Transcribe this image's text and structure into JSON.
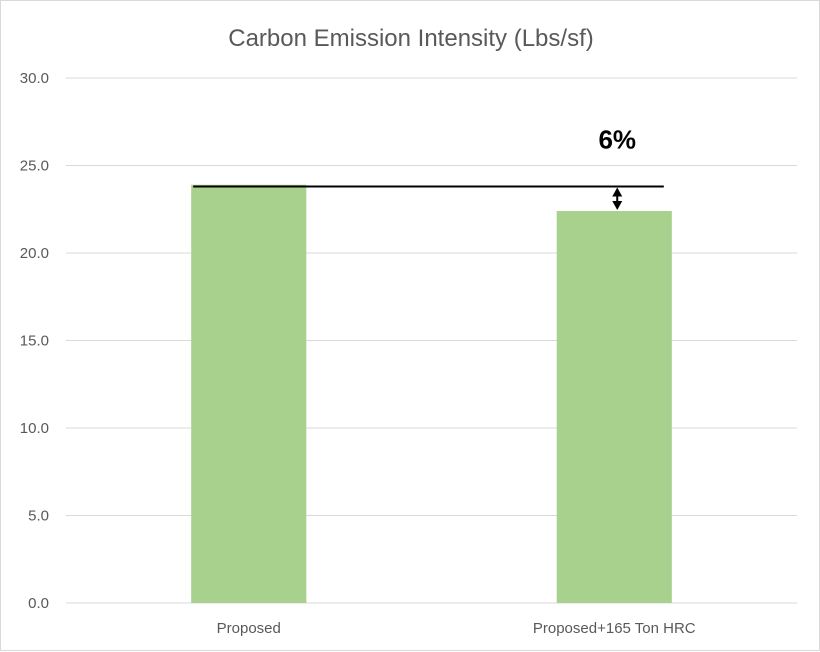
{
  "chart_data": {
    "type": "bar",
    "title": "Carbon Emission Intensity (Lbs/sf)",
    "xlabel": "",
    "ylabel": "",
    "categories": [
      "Proposed",
      "Proposed+165 Ton HRC"
    ],
    "values": [
      23.9,
      22.4
    ],
    "ylim": [
      0,
      30
    ],
    "yticks": [
      "0.0",
      "5.0",
      "10.0",
      "15.0",
      "20.0",
      "25.0",
      "30.0"
    ],
    "grid": true,
    "legend": "none",
    "annotation": {
      "text": "6%",
      "reference_value": 23.8
    },
    "colors": {
      "bar": "#a9d18e",
      "gridline": "#d9d9d9",
      "reference_line": "#000000"
    }
  }
}
